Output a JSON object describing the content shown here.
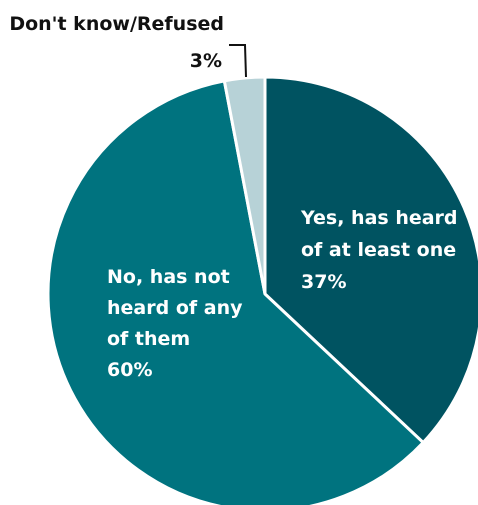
{
  "chart_data": {
    "type": "pie",
    "start_angle_deg": 0,
    "direction": "clockwise",
    "slices": [
      {
        "label_lines": [
          "Yes, has heard",
          "of at least one"
        ],
        "value": 37,
        "value_label": "37%",
        "color": "#005361",
        "label_position": "inside",
        "text_color": "#ffffff"
      },
      {
        "label_lines": [
          "No, has not",
          "heard of any",
          "of them"
        ],
        "value": 60,
        "value_label": "60%",
        "color": "#00737f",
        "label_position": "inside",
        "text_color": "#ffffff"
      },
      {
        "label_lines": [
          "Don't know/Refused"
        ],
        "value": 3,
        "value_label": "3%",
        "color": "#b7d2d7",
        "label_position": "outside-top-left",
        "text_color": "#111111"
      }
    ],
    "legend": "none"
  }
}
